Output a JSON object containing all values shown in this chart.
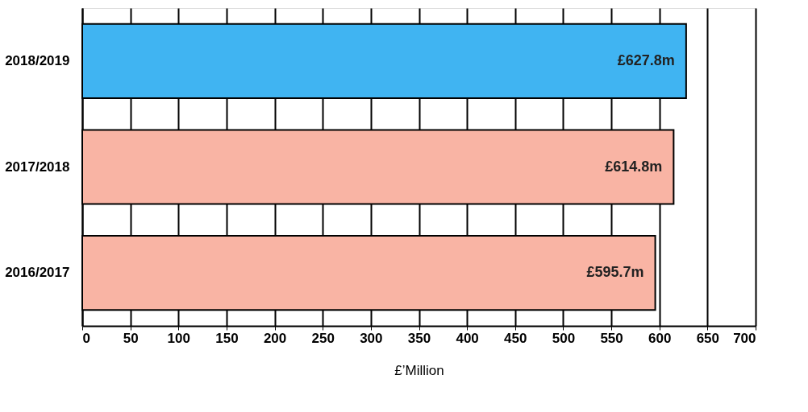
{
  "chart_data": {
    "type": "bar",
    "orientation": "horizontal",
    "xlabel": "£’Million",
    "categories": [
      "2018/2019",
      "2017/2018",
      "2016/2017"
    ],
    "values": [
      627.8,
      614.8,
      595.7
    ],
    "colors": [
      "#40b4f2",
      "#f9b4a4",
      "#f9b4a4"
    ],
    "value_labels": [
      "£627.8m",
      "£614.8m",
      "£595.7m"
    ],
    "xlim": [
      0,
      700
    ],
    "xticks": [
      0,
      50,
      100,
      150,
      200,
      250,
      300,
      350,
      400,
      450,
      500,
      550,
      600,
      650,
      700
    ],
    "grid": "x",
    "legend": false
  }
}
